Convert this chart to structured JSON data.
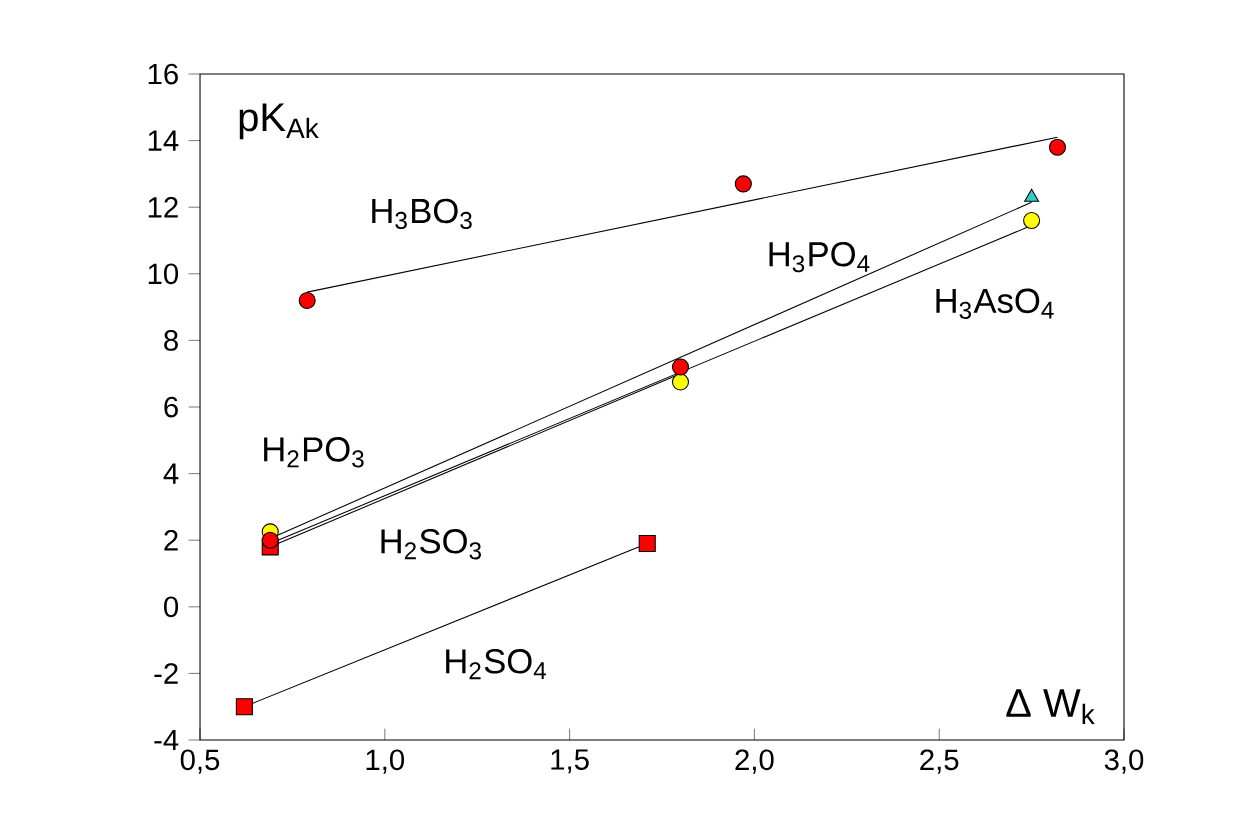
{
  "chart_data": {
    "type": "scatter",
    "xlabel": "Δ W$_{k}$",
    "ylabel": "pK$_{Ak}$",
    "xlim": [
      0.5,
      3.0
    ],
    "ylim": [
      -4,
      16
    ],
    "xticks": [
      {
        "value": 0.5,
        "label": "0,5"
      },
      {
        "value": 1.0,
        "label": "1,0"
      },
      {
        "value": 1.5,
        "label": "1,5"
      },
      {
        "value": 2.0,
        "label": "2,0"
      },
      {
        "value": 2.5,
        "label": "2,5"
      },
      {
        "value": 3.0,
        "label": "3,0"
      }
    ],
    "yticks": [
      -4,
      -2,
      0,
      2,
      4,
      6,
      8,
      10,
      12,
      14,
      16
    ],
    "grid": false,
    "series": [
      {
        "type": "line",
        "color": "#000000",
        "marker": "none",
        "x": [
          0.79,
          2.82
        ],
        "values": [
          9.45,
          14.1
        ]
      },
      {
        "type": "line",
        "color": "#000000",
        "marker": "none",
        "x": [
          0.69,
          2.75
        ],
        "values": [
          2.05,
          12.15
        ]
      },
      {
        "type": "line",
        "color": "#000000",
        "marker": "none",
        "x": [
          0.69,
          2.75
        ],
        "values": [
          1.9,
          11.45
        ]
      },
      {
        "type": "line",
        "color": "#000000",
        "marker": "none",
        "x": [
          0.69,
          1.8
        ],
        "values": [
          1.8,
          7.0
        ]
      },
      {
        "type": "line",
        "color": "#000000",
        "marker": "none",
        "x": [
          0.62,
          1.71
        ],
        "values": [
          -3.0,
          1.9
        ]
      },
      {
        "color": "#ffff00",
        "marker": "circle",
        "x": [
          0.69,
          1.8,
          2.75
        ],
        "values": [
          2.25,
          6.75,
          11.6
        ]
      },
      {
        "color": "#ff0000",
        "marker": "square",
        "x": [
          0.69,
          0.62,
          1.71
        ],
        "values": [
          1.8,
          -3.0,
          1.9
        ]
      },
      {
        "color": "#ff0000",
        "marker": "circle",
        "x": [
          0.79,
          1.97,
          2.82,
          1.8,
          0.69
        ],
        "values": [
          9.2,
          12.7,
          13.8,
          7.2,
          2.0
        ]
      },
      {
        "color": "#33cccc",
        "marker": "triangle",
        "x": [
          2.75
        ],
        "values": [
          12.3
        ]
      }
    ],
    "annotations": [
      "H$_{3}$BO$_{3}$",
      "H$_{3}$PO$_{4}$",
      "H$_{3}$AsO$_{4}$",
      "H$_{2}$PO$_{3}$",
      "H$_{2}$SO$_{3}$",
      "H$_{2}$SO$_{4}$"
    ]
  }
}
